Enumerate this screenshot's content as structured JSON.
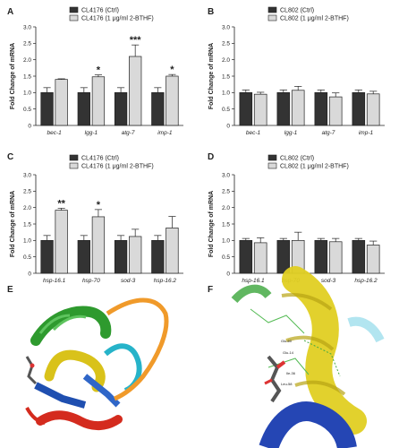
{
  "colors": {
    "ctrl_fill": "#333333",
    "treat_fill": "#d9d9d9",
    "axis": "#222222"
  },
  "chart_data": [
    {
      "panel": "A",
      "type": "bar",
      "ylabel": "Fold Change of mRNA",
      "ylim": [
        0,
        3.0
      ],
      "yticks": [
        "0",
        "0.5",
        "1.0",
        "1.5",
        "2.0",
        "2.5",
        "3.0"
      ],
      "categories": [
        "bec-1",
        "lgg-1",
        "atg-7",
        "imp-1"
      ],
      "series": [
        {
          "name": "CL4176 (Ctrl)",
          "values": [
            1.0,
            1.0,
            1.0,
            1.0
          ],
          "errors": [
            0.15,
            0.15,
            0.15,
            0.15
          ]
        },
        {
          "name": "CL4176 (1 μg/ml 2-BTHF)",
          "values": [
            1.4,
            1.48,
            2.1,
            1.5
          ],
          "errors": [
            0.02,
            0.06,
            0.35,
            0.05
          ]
        }
      ],
      "significance": [
        "",
        "*",
        "***",
        "*"
      ],
      "legend": "top"
    },
    {
      "panel": "B",
      "type": "bar",
      "ylabel": "Fold Change of mRNA",
      "ylim": [
        0,
        3.0
      ],
      "yticks": [
        "0",
        "0.5",
        "1.0",
        "1.5",
        "2.0",
        "2.5",
        "3.0"
      ],
      "categories": [
        "bec-1",
        "lgg-1",
        "atg-7",
        "imp-1"
      ],
      "series": [
        {
          "name": "CL802 (Ctrl)",
          "values": [
            1.0,
            1.0,
            1.0,
            1.0
          ],
          "errors": [
            0.08,
            0.08,
            0.08,
            0.08
          ]
        },
        {
          "name": "CL802 (1 μg/ml 2-BTHF)",
          "values": [
            0.95,
            1.07,
            0.87,
            0.96
          ],
          "errors": [
            0.06,
            0.12,
            0.12,
            0.08
          ]
        }
      ],
      "significance": [
        "",
        "",
        "",
        ""
      ],
      "legend": "top"
    },
    {
      "panel": "C",
      "type": "bar",
      "ylabel": "Fold Change of mRNA",
      "ylim": [
        0,
        3.0
      ],
      "yticks": [
        "0",
        "0.5",
        "1.0",
        "1.5",
        "2.0",
        "2.5",
        "3.0"
      ],
      "categories": [
        "hsp-16.1",
        "hsp-70",
        "sod-3",
        "hsp-16.2"
      ],
      "series": [
        {
          "name": "CL4176 (Ctrl)",
          "values": [
            1.0,
            1.0,
            1.0,
            1.0
          ],
          "errors": [
            0.15,
            0.15,
            0.15,
            0.15
          ]
        },
        {
          "name": "CL4176 (1 μg/ml 2-BTHF)",
          "values": [
            1.92,
            1.72,
            1.12,
            1.38
          ],
          "errors": [
            0.06,
            0.22,
            0.22,
            0.35
          ]
        }
      ],
      "significance": [
        "**",
        "*",
        "",
        ""
      ],
      "legend": "top"
    },
    {
      "panel": "D",
      "type": "bar",
      "ylabel": "Fold Change of mRNA",
      "ylim": [
        0,
        3.0
      ],
      "yticks": [
        "0",
        "0.5",
        "1.0",
        "1.5",
        "2.0",
        "2.5",
        "3.0"
      ],
      "categories": [
        "hsp-16.1",
        "hsp-70",
        "sod-3",
        "hsp-16.2"
      ],
      "series": [
        {
          "name": "CL802 (Ctrl)",
          "values": [
            1.0,
            1.0,
            1.0,
            1.0
          ],
          "errors": [
            0.06,
            0.06,
            0.06,
            0.06
          ]
        },
        {
          "name": "CL802 (1 μg/ml 2-BTHF)",
          "values": [
            0.93,
            1.0,
            0.96,
            0.86
          ],
          "errors": [
            0.15,
            0.25,
            0.1,
            0.12
          ]
        }
      ],
      "significance": [
        "",
        "",
        "",
        ""
      ],
      "legend": "top"
    }
  ],
  "structures": [
    {
      "panel": "E"
    },
    {
      "panel": "F",
      "residue_labels": [
        "Glu-60",
        "Glu-14",
        "Ile-36",
        "Leu-58"
      ]
    }
  ]
}
